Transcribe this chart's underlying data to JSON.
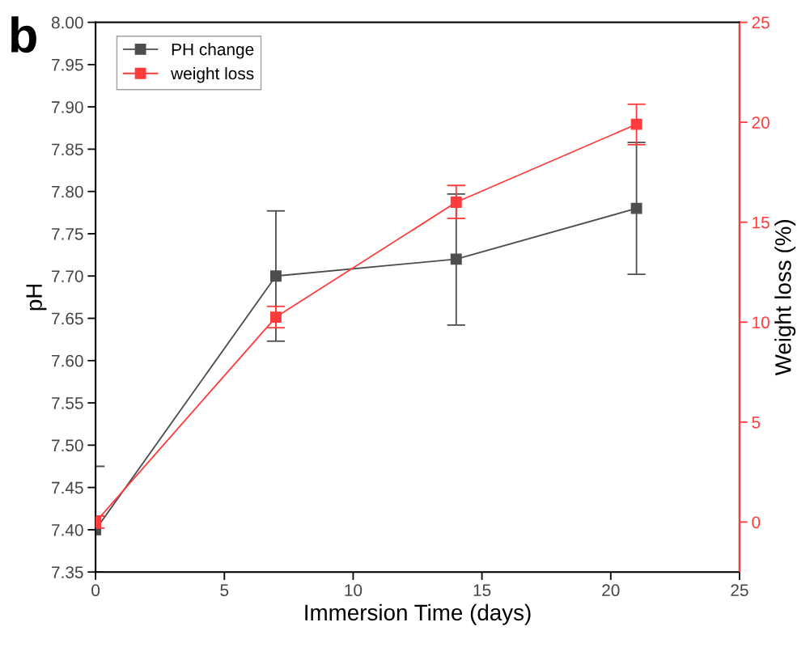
{
  "chart_data": {
    "type": "line",
    "xlabel": "Immersion Time (days)",
    "ylabel": "pH",
    "y2label": "Weight loss (%)",
    "annotations": [
      "b"
    ],
    "x": [
      0,
      7,
      14,
      21
    ],
    "series": [
      {
        "name": "PH change",
        "color": "#4d4d4d",
        "values": [
          7.4,
          7.7,
          7.72,
          7.78
        ],
        "errors": [
          [
            7.35,
            7.475
          ],
          [
            7.623,
            7.777
          ],
          [
            7.642,
            7.797
          ],
          [
            7.702,
            7.858
          ]
        ]
      },
      {
        "name": "weight loss",
        "color": "#ff3b3b",
        "axis": "y2",
        "values": [
          0,
          10.25,
          16.0,
          19.9
        ],
        "errors": [
          [
            -0.3,
            0.3
          ],
          [
            9.72,
            10.79
          ],
          [
            15.19,
            16.84
          ],
          [
            18.88,
            20.9
          ]
        ]
      }
    ],
    "xlim": [
      0,
      25
    ],
    "xticks": [
      0,
      5,
      10,
      15,
      20,
      25
    ],
    "ylim": [
      7.35,
      8.0
    ],
    "yticks": [
      {
        "value": 7.35,
        "label": "7.35"
      },
      {
        "value": 7.4,
        "label": "7.40"
      },
      {
        "value": 7.45,
        "label": "7.45"
      },
      {
        "value": 7.5,
        "label": "7.50"
      },
      {
        "value": 7.55,
        "label": "7.55"
      },
      {
        "value": 7.6,
        "label": "7.60"
      },
      {
        "value": 7.65,
        "label": "7.65"
      },
      {
        "value": 7.7,
        "label": "7.70"
      },
      {
        "value": 7.75,
        "label": "7.75"
      },
      {
        "value": 7.8,
        "label": "7.80"
      },
      {
        "value": 7.85,
        "label": "7.85"
      },
      {
        "value": 7.9,
        "label": "7.90"
      },
      {
        "value": 7.95,
        "label": "7.95"
      },
      {
        "value": 8.0,
        "label": "8.00"
      }
    ],
    "y2lim": [
      -2.5,
      25
    ],
    "y2ticks": [
      0,
      5,
      10,
      15,
      20,
      25
    ],
    "marker": "square",
    "line_style": "solid",
    "legend": "top left",
    "grid": false
  }
}
